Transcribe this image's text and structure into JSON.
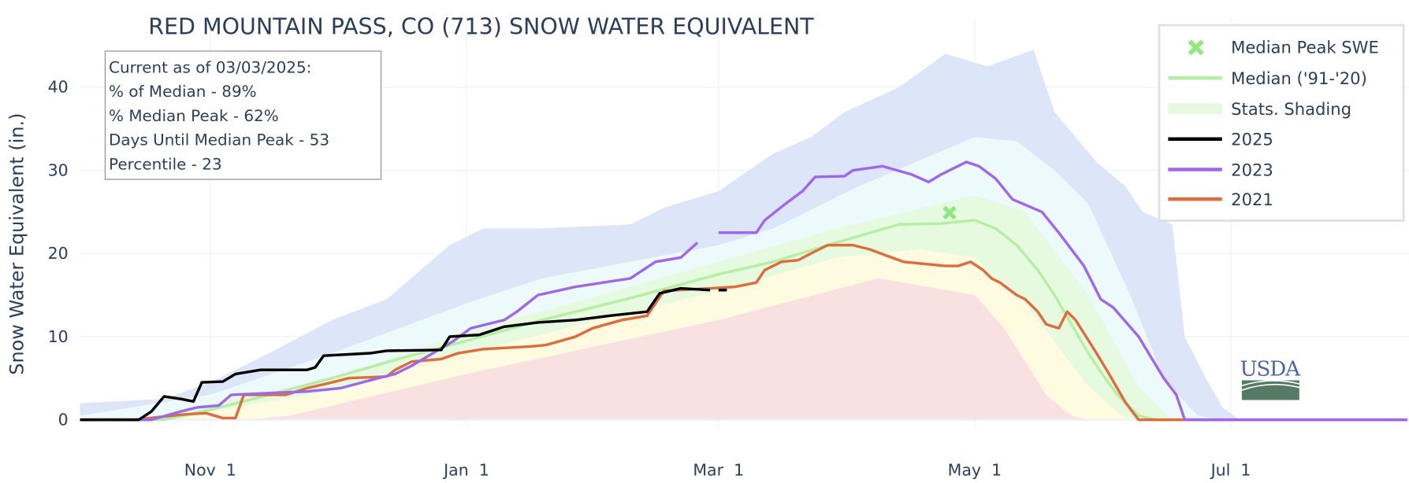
{
  "chart_data": {
    "type": "line",
    "title": "RED MOUNTAIN PASS, CO (713) SNOW WATER EQUIVALENT",
    "xlabel": "",
    "ylabel": "Snow Water Equivalent (in.)",
    "x_units": "days since Oct 1 (water year)",
    "xlim": [
      0,
      316
    ],
    "ylim": [
      -1,
      46
    ],
    "grid": true,
    "legend_placement": "top-right",
    "x_ticks": [
      {
        "day": 31,
        "label": "Nov  1"
      },
      {
        "day": 92,
        "label": "Jan  1"
      },
      {
        "day": 152,
        "label": "Mar  1"
      },
      {
        "day": 213,
        "label": "May  1"
      },
      {
        "day": 274,
        "label": "Jul  1"
      }
    ],
    "y_ticks": [
      0,
      10,
      20,
      30,
      40
    ],
    "legend": [
      "Median Peak SWE",
      "Median ('91-'20)",
      "Stats. Shading",
      "2025",
      "2023",
      "2021"
    ],
    "colors": {
      "max_band": "#dde6f8",
      "p90_band": "#ecfafb",
      "p70_band": "#e6fae0",
      "p30_band": "#fefbe0",
      "p10_band": "#f9e1e1",
      "median": "#b3f0a2",
      "peak_marker": "#8fe97d",
      "y2025": "#000000",
      "y2023": "#9f67ef",
      "y2021": "#e06c3c",
      "text": "#2a3f5f",
      "grid": "#ebf0f8"
    },
    "shading": {
      "max": [
        [
          0,
          2
        ],
        [
          20,
          2.5
        ],
        [
          31,
          4.5
        ],
        [
          45,
          8
        ],
        [
          60,
          12
        ],
        [
          73,
          14.5
        ],
        [
          88,
          21
        ],
        [
          96,
          23
        ],
        [
          109,
          23
        ],
        [
          131,
          23.5
        ],
        [
          139,
          25.5
        ],
        [
          152,
          27.5
        ],
        [
          165,
          32
        ],
        [
          174,
          34
        ],
        [
          182,
          37
        ],
        [
          195,
          40
        ],
        [
          206,
          44
        ],
        [
          216,
          42.5
        ],
        [
          227,
          44.5
        ],
        [
          232,
          37
        ],
        [
          237,
          34
        ],
        [
          242,
          31
        ],
        [
          249,
          28
        ],
        [
          253,
          25
        ],
        [
          260,
          23.5
        ],
        [
          263,
          10
        ],
        [
          268,
          5
        ],
        [
          272,
          1.5
        ],
        [
          276,
          0
        ],
        [
          316,
          0
        ]
      ],
      "p90": [
        [
          0,
          0.5
        ],
        [
          31,
          3
        ],
        [
          60,
          8
        ],
        [
          92,
          14
        ],
        [
          110,
          17
        ],
        [
          152,
          21
        ],
        [
          165,
          23
        ],
        [
          185,
          28
        ],
        [
          213,
          34
        ],
        [
          223,
          33.5
        ],
        [
          232,
          30
        ],
        [
          240,
          26
        ],
        [
          250,
          15
        ],
        [
          258,
          5
        ],
        [
          266,
          0.5
        ],
        [
          272,
          0
        ],
        [
          316,
          0
        ]
      ],
      "p70": [
        [
          0,
          0
        ],
        [
          20,
          0.3
        ],
        [
          31,
          2
        ],
        [
          60,
          5
        ],
        [
          92,
          10.5
        ],
        [
          152,
          19
        ],
        [
          180,
          23
        ],
        [
          213,
          27
        ],
        [
          225,
          25
        ],
        [
          240,
          15
        ],
        [
          252,
          4
        ],
        [
          260,
          0
        ],
        [
          316,
          0
        ]
      ],
      "p30": [
        [
          0,
          0
        ],
        [
          25,
          0.2
        ],
        [
          31,
          1
        ],
        [
          60,
          3.5
        ],
        [
          92,
          8
        ],
        [
          152,
          15.5
        ],
        [
          180,
          19.5
        ],
        [
          200,
          20.5
        ],
        [
          213,
          19.5
        ],
        [
          225,
          14
        ],
        [
          240,
          4
        ],
        [
          248,
          0.5
        ],
        [
          252,
          0
        ],
        [
          316,
          0
        ]
      ],
      "p10": [
        [
          0,
          0
        ],
        [
          40,
          0
        ],
        [
          50,
          0.5
        ],
        [
          92,
          5.5
        ],
        [
          152,
          12
        ],
        [
          190,
          17
        ],
        [
          213,
          15
        ],
        [
          220,
          11
        ],
        [
          230,
          3
        ],
        [
          236,
          0.5
        ],
        [
          240,
          0
        ],
        [
          316,
          0
        ]
      ]
    },
    "median_peak": {
      "day": 207,
      "value": 24.9
    },
    "series": [
      {
        "name": "Median ('91-'20)",
        "points": [
          [
            0,
            0
          ],
          [
            20,
            0
          ],
          [
            31,
            1.2
          ],
          [
            45,
            3
          ],
          [
            60,
            5
          ],
          [
            75,
            7.2
          ],
          [
            92,
            9.5
          ],
          [
            110,
            12
          ],
          [
            130,
            14.5
          ],
          [
            152,
            17.5
          ],
          [
            165,
            19
          ],
          [
            178,
            21
          ],
          [
            195,
            23.5
          ],
          [
            205,
            23.6
          ],
          [
            213,
            24
          ],
          [
            218,
            23
          ],
          [
            223,
            21
          ],
          [
            228,
            18
          ],
          [
            232,
            15
          ],
          [
            236,
            11.5
          ],
          [
            240,
            8
          ],
          [
            244,
            5
          ],
          [
            247,
            3
          ],
          [
            250,
            1.5
          ],
          [
            252,
            0.5
          ],
          [
            256,
            0
          ],
          [
            316,
            0
          ]
        ]
      },
      {
        "name": "2025",
        "points": [
          [
            0,
            0
          ],
          [
            14,
            0
          ],
          [
            17,
            1
          ],
          [
            20,
            2.8
          ],
          [
            24,
            2.5
          ],
          [
            27,
            2.2
          ],
          [
            29,
            4.5
          ],
          [
            34,
            4.6
          ],
          [
            37,
            5.5
          ],
          [
            43,
            6
          ],
          [
            54,
            6
          ],
          [
            56,
            6.3
          ],
          [
            58,
            7.7
          ],
          [
            69,
            8
          ],
          [
            73,
            8.3
          ],
          [
            86,
            8.4
          ],
          [
            88,
            10
          ],
          [
            95,
            10.2
          ],
          [
            101,
            11.2
          ],
          [
            109,
            11.7
          ],
          [
            118,
            12
          ],
          [
            126,
            12.5
          ],
          [
            135,
            13
          ],
          [
            138,
            15.2
          ],
          [
            143,
            15.8
          ],
          [
            150,
            15.6
          ],
          null,
          [
            152,
            15.6
          ],
          [
            154,
            15.6
          ]
        ]
      },
      {
        "name": "2023",
        "points": [
          [
            0,
            0
          ],
          [
            17,
            0
          ],
          [
            24,
            1
          ],
          [
            28,
            1.5
          ],
          [
            33,
            1.7
          ],
          [
            36,
            3
          ],
          [
            45,
            3.2
          ],
          [
            54,
            3.4
          ],
          [
            62,
            3.8
          ],
          [
            71,
            5
          ],
          [
            75,
            5.5
          ],
          [
            79,
            6.5
          ],
          [
            84,
            8
          ],
          [
            89,
            9.5
          ],
          [
            93,
            11
          ],
          [
            101,
            12
          ],
          [
            104,
            13
          ],
          [
            109,
            15
          ],
          [
            118,
            16
          ],
          [
            131,
            17
          ],
          [
            137,
            19
          ],
          [
            143,
            19.5
          ],
          [
            147,
            21.3
          ],
          null,
          [
            152,
            22.5
          ],
          [
            161,
            22.5
          ],
          [
            163,
            24
          ],
          [
            168,
            26
          ],
          [
            172,
            27.5
          ],
          [
            175,
            29.2
          ],
          [
            182,
            29.3
          ],
          [
            184,
            30
          ],
          [
            191,
            30.5
          ],
          [
            198,
            29.5
          ],
          [
            202,
            28.6
          ],
          [
            205,
            29.5
          ],
          [
            211,
            31
          ],
          [
            214,
            30.5
          ],
          [
            218,
            29
          ],
          [
            222,
            26.5
          ],
          [
            229,
            25
          ],
          [
            233,
            22.5
          ],
          [
            239,
            18.5
          ],
          [
            243,
            14.5
          ],
          [
            246,
            13.5
          ],
          [
            252,
            10
          ],
          [
            258,
            5
          ],
          [
            261,
            3
          ],
          [
            263,
            0
          ],
          [
            316,
            0
          ]
        ]
      },
      {
        "name": "2021",
        "points": [
          [
            0,
            0
          ],
          [
            13,
            0
          ],
          [
            24,
            0.6
          ],
          [
            30,
            0.8
          ],
          [
            34,
            0.2
          ],
          [
            37,
            0.2
          ],
          [
            39,
            3
          ],
          [
            49,
            3
          ],
          [
            54,
            3.8
          ],
          [
            60,
            4.5
          ],
          [
            64,
            5
          ],
          [
            73,
            5.2
          ],
          [
            75,
            6
          ],
          [
            79,
            7
          ],
          [
            86,
            7.3
          ],
          [
            90,
            8
          ],
          [
            96,
            8.5
          ],
          [
            107,
            8.8
          ],
          [
            111,
            9
          ],
          [
            118,
            10
          ],
          [
            122,
            11
          ],
          [
            129,
            12
          ],
          [
            135,
            12.5
          ],
          [
            139,
            15.5
          ],
          [
            150,
            15.8
          ],
          [
            156,
            16
          ],
          [
            161,
            16.5
          ],
          [
            163,
            18
          ],
          [
            167,
            19
          ],
          [
            171,
            19.2
          ],
          [
            174,
            20
          ],
          [
            178,
            21
          ],
          [
            184,
            21
          ],
          [
            188,
            20.5
          ],
          [
            196,
            19
          ],
          [
            206,
            18.5
          ],
          [
            209,
            18.5
          ],
          [
            212,
            19
          ],
          [
            215,
            18
          ],
          [
            217,
            17
          ],
          [
            219,
            16.5
          ],
          [
            223,
            15
          ],
          [
            225,
            14.5
          ],
          [
            228,
            13
          ],
          [
            230,
            11.5
          ],
          [
            233,
            11
          ],
          [
            235,
            13
          ],
          [
            237,
            12
          ],
          [
            242,
            8
          ],
          [
            245,
            5.5
          ],
          [
            249,
            2
          ],
          [
            252,
            0
          ],
          [
            316,
            0
          ]
        ]
      }
    ]
  },
  "annotation": {
    "lines": [
      "Current as of 03/03/2025:",
      "% of Median - 89%",
      "% Median Peak - 62%",
      "Days Until Median Peak - 53",
      "Percentile - 23"
    ]
  },
  "logo": {
    "text": "USDA"
  }
}
